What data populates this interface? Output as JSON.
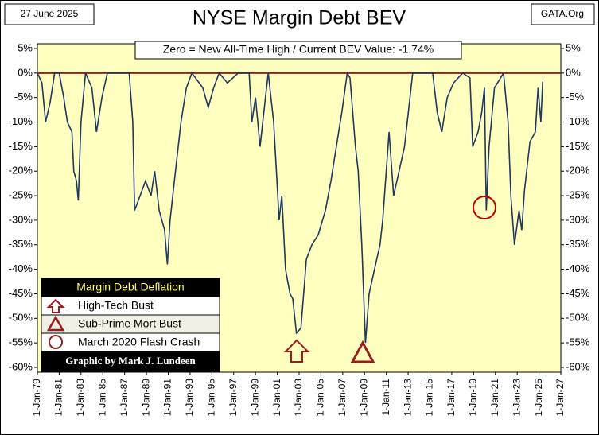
{
  "chart_data": {
    "type": "line",
    "date": "27 June 2025",
    "source": "GATA.Org",
    "title": "NYSE Margin Debt BEV",
    "subtitle": "Zero = New All-Time High / Current BEV Value:  -1.74%",
    "legend_title": "Margin Debt Deflation",
    "annotations": [
      "High-Tech Bust",
      "Sub-Prime Mort Bust",
      "March 2020 Flash Crash"
    ],
    "credit": "Graphic by Mark J. Lundeen",
    "xlim": [
      "1979-01",
      "2027-01"
    ],
    "xticks": [
      {
        "value": "1979-01",
        "label": "1-Jan-79"
      },
      {
        "value": "1981-01",
        "label": "1-Jan-81"
      },
      {
        "value": "1983-01",
        "label": "1-Jan-83"
      },
      {
        "value": "1985-01",
        "label": "1-Jan-85"
      },
      {
        "value": "1987-01",
        "label": "1-Jan-87"
      },
      {
        "value": "1989-01",
        "label": "1-Jan-89"
      },
      {
        "value": "1991-01",
        "label": "1-Jan-91"
      },
      {
        "value": "1993-01",
        "label": "1-Jan-93"
      },
      {
        "value": "1995-01",
        "label": "1-Jan-95"
      },
      {
        "value": "1997-01",
        "label": "1-Jan-97"
      },
      {
        "value": "1999-01",
        "label": "1-Jan-99"
      },
      {
        "value": "2001-01",
        "label": "1-Jan-01"
      },
      {
        "value": "2003-01",
        "label": "1-Jan-03"
      },
      {
        "value": "2005-01",
        "label": "1-Jan-05"
      },
      {
        "value": "2007-01",
        "label": "1-Jan-07"
      },
      {
        "value": "2009-01",
        "label": "1-Jan-09"
      },
      {
        "value": "2011-01",
        "label": "1-Jan-11"
      },
      {
        "value": "2013-01",
        "label": "1-Jan-13"
      },
      {
        "value": "2015-01",
        "label": "1-Jan-15"
      },
      {
        "value": "2017-01",
        "label": "1-Jan-17"
      },
      {
        "value": "2019-01",
        "label": "1-Jan-19"
      },
      {
        "value": "2021-01",
        "label": "1-Jan-21"
      },
      {
        "value": "2023-01",
        "label": "1-Jan-23"
      },
      {
        "value": "2025-01",
        "label": "1-Jan-25"
      },
      {
        "value": "2027-01",
        "label": "1-Jan-27"
      }
    ],
    "ylim": [
      -60,
      5
    ],
    "yticks": [
      {
        "value": 5,
        "label": "5%"
      },
      {
        "value": 0,
        "label": "0%"
      },
      {
        "value": -5,
        "label": "-5%"
      },
      {
        "value": -10,
        "label": "-10%"
      },
      {
        "value": -15,
        "label": "-15%"
      },
      {
        "value": -20,
        "label": "-20%"
      },
      {
        "value": -25,
        "label": "-25%"
      },
      {
        "value": -30,
        "label": "-30%"
      },
      {
        "value": -35,
        "label": "-35%"
      },
      {
        "value": -40,
        "label": "-40%"
      },
      {
        "value": -45,
        "label": "-45%"
      },
      {
        "value": -50,
        "label": "-50%"
      },
      {
        "value": -55,
        "label": "-55%"
      },
      {
        "value": -60,
        "label": "-60%"
      }
    ],
    "zero_line_color": "#9b1c1c",
    "x": [
      "1979-01",
      "1979-06",
      "1979-10",
      "1980-03",
      "1980-08",
      "1981-01",
      "1981-06",
      "1981-10",
      "1982-03",
      "1982-05",
      "1982-08",
      "1982-10",
      "1983-01",
      "1983-06",
      "1984-01",
      "1984-06",
      "1984-12",
      "1985-06",
      "1986-06",
      "1987-06",
      "1987-10",
      "1987-12",
      "1988-06",
      "1988-12",
      "1989-06",
      "1989-10",
      "1990-03",
      "1990-09",
      "1990-12",
      "1991-03",
      "1991-09",
      "1992-03",
      "1992-09",
      "1993-03",
      "1994-03",
      "1994-09",
      "1995-03",
      "1995-09",
      "1996-06",
      "1997-06",
      "1998-06",
      "1998-09",
      "1999-01",
      "1999-06",
      "1999-12",
      "2000-03",
      "2000-09",
      "2001-03",
      "2001-06",
      "2001-10",
      "2002-03",
      "2002-06",
      "2002-10",
      "2003-03",
      "2003-06",
      "2003-09",
      "2004-03",
      "2004-10",
      "2005-06",
      "2005-12",
      "2006-06",
      "2006-12",
      "2007-06",
      "2007-09",
      "2008-03",
      "2008-06",
      "2008-10",
      "2009-02",
      "2009-06",
      "2009-12",
      "2010-06",
      "2010-09",
      "2011-04",
      "2011-09",
      "2012-03",
      "2012-09",
      "2013-03",
      "2013-06",
      "2014-03",
      "2015-04",
      "2015-09",
      "2016-02",
      "2016-08",
      "2017-03",
      "2018-01",
      "2018-09",
      "2018-12",
      "2019-06",
      "2019-10",
      "2020-01",
      "2020-03",
      "2020-06",
      "2020-12",
      "2021-10",
      "2022-03",
      "2022-06",
      "2022-10",
      "2023-03",
      "2023-06",
      "2023-09",
      "2024-03",
      "2024-09",
      "2024-12",
      "2025-03",
      "2025-05"
    ],
    "series": [
      {
        "name": "NYSE Margin Debt BEV",
        "color": "#1f3864",
        "values": [
          0,
          -2,
          -10,
          -6,
          0,
          0,
          -5,
          -10,
          -12,
          -20,
          -22,
          -26,
          -10,
          0,
          -3,
          -12,
          -5,
          0,
          0,
          0,
          -10,
          -28,
          -25,
          -22,
          -25,
          -20,
          -28,
          -32,
          -39,
          -30,
          -20,
          -10,
          -3,
          0,
          -3,
          -7,
          -3,
          0,
          -2,
          0,
          0,
          -10,
          -5,
          -15,
          -5,
          0,
          -10,
          -30,
          -25,
          -40,
          -45,
          -46,
          -53,
          -52,
          -45,
          -38,
          -35,
          -33,
          -28,
          -22,
          -15,
          -8,
          0,
          -1,
          -15,
          -20,
          -35,
          -55,
          -45,
          -40,
          -35,
          -30,
          -12,
          -25,
          -20,
          -15,
          -5,
          0,
          0,
          0,
          -8,
          -12,
          -5,
          -2,
          0,
          -1,
          -15,
          -12,
          -8,
          -3,
          -28,
          -15,
          -3,
          0,
          -10,
          -25,
          -35,
          -28,
          -32,
          -24,
          -14,
          -12,
          -3,
          -10,
          -1.74
        ]
      }
    ]
  }
}
